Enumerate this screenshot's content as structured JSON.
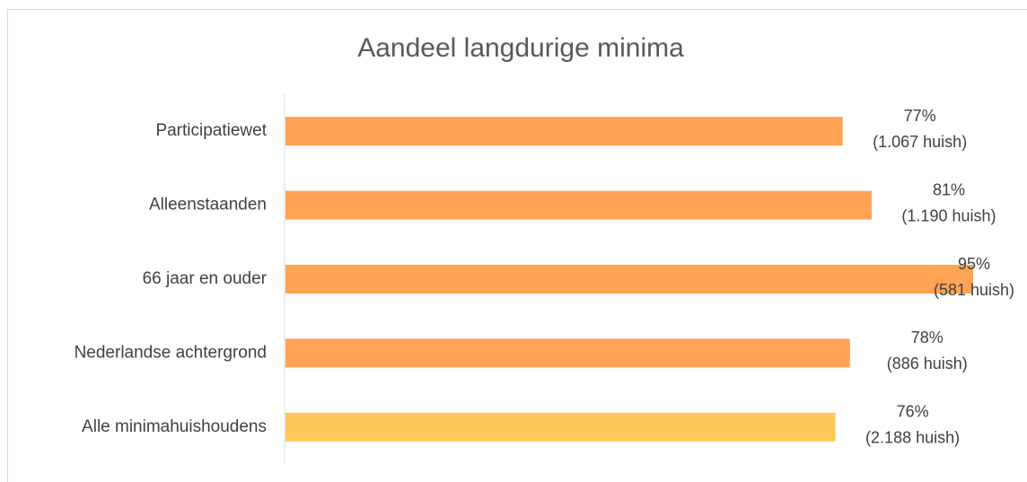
{
  "chart_data": {
    "type": "bar",
    "orientation": "horizontal",
    "title": "Aandeel langdurige minima",
    "categories": [
      "Participatiewet",
      "Alleenstaanden",
      "66 jaar en ouder",
      "Nederlandse achtergrond",
      "Alle minimahuishoudens"
    ],
    "values": [
      77,
      81,
      95,
      78,
      76
    ],
    "value_labels": [
      "77%",
      "81%",
      "95%",
      "78%",
      "76%"
    ],
    "count_labels": [
      "(1.067 huish)",
      "(1.190 huish)",
      "(581 huish)",
      "(886 huish)",
      "(2.188 huish)"
    ],
    "colors": [
      "#ffa355",
      "#ffa355",
      "#ffa355",
      "#ffa355",
      "#ffc858"
    ]
  }
}
